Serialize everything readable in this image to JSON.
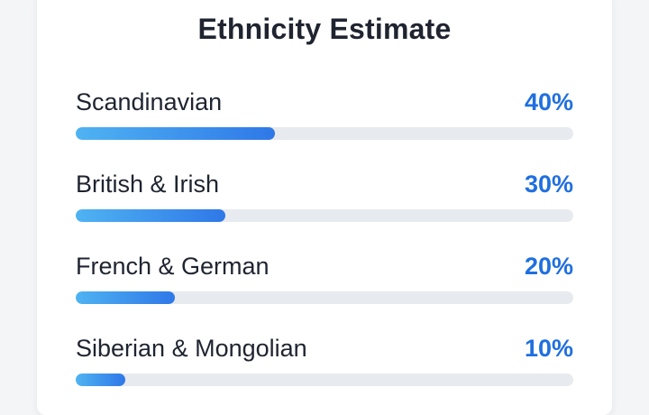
{
  "title": "Ethnicity Estimate",
  "items": [
    {
      "label": "Scandinavian",
      "percent_text": "40%",
      "percent": 40
    },
    {
      "label": "British & Irish",
      "percent_text": "30%",
      "percent": 30
    },
    {
      "label": "French & German",
      "percent_text": "20%",
      "percent": 20
    },
    {
      "label": "Siberian & Mongolian",
      "percent_text": "10%",
      "percent": 10
    }
  ],
  "colors": {
    "accent": "#1f6fe0",
    "bar_start": "#4fb3f2",
    "bar_end": "#2f78e8",
    "track": "#e7eaee"
  }
}
